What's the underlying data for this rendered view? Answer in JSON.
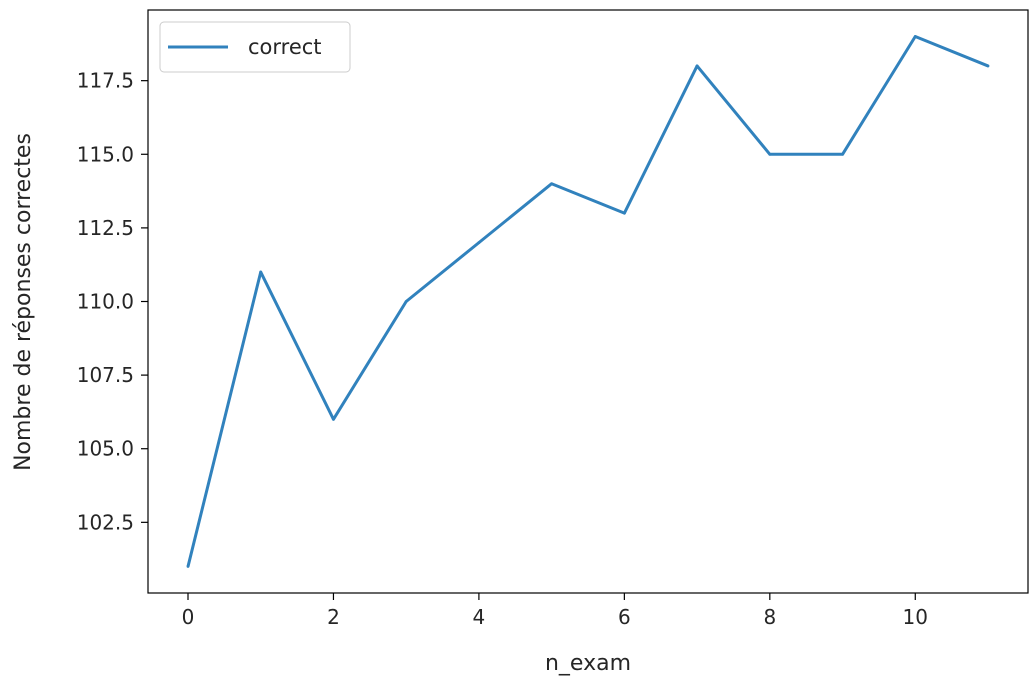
{
  "chart_data": {
    "type": "line",
    "x": [
      0,
      1,
      2,
      3,
      4,
      5,
      6,
      7,
      8,
      9,
      10,
      11
    ],
    "series": [
      {
        "name": "correct",
        "values": [
          101,
          111,
          106,
          110,
          112,
          114,
          113,
          118,
          115,
          115,
          119,
          118
        ],
        "color": "#3182bd"
      }
    ],
    "xlabel": "n_exam",
    "ylabel": "Nombre de réponses correctes",
    "xlim": [
      -0.55,
      11.55
    ],
    "ylim": [
      100.1,
      119.9
    ],
    "xticks": [
      0,
      2,
      4,
      6,
      8,
      10
    ],
    "xtick_labels": [
      "0",
      "2",
      "4",
      "6",
      "8",
      "10"
    ],
    "yticks": [
      102.5,
      105.0,
      107.5,
      110.0,
      112.5,
      115.0,
      117.5
    ],
    "ytick_labels": [
      "102.5",
      "105.0",
      "107.5",
      "110.0",
      "112.5",
      "115.0",
      "117.5"
    ],
    "grid": false,
    "legend_position": "top-left"
  }
}
